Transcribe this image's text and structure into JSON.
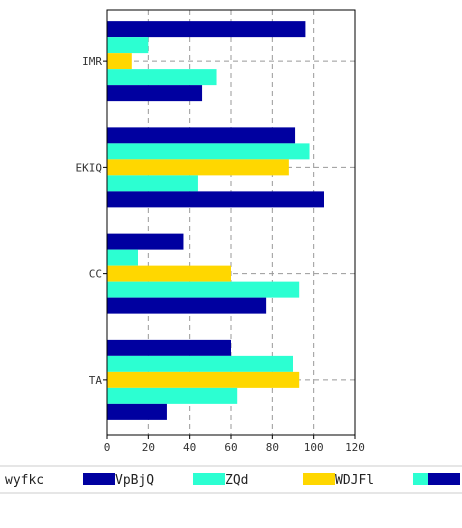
{
  "chart_data": {
    "type": "bar",
    "orientation": "horizontal",
    "categories": [
      "IMR",
      "EKIQ",
      "CC",
      "TA"
    ],
    "series": [
      {
        "name": "wyfkc",
        "color": "#0000A0",
        "values": [
          96,
          91,
          37,
          60
        ]
      },
      {
        "name": "VpBjQ",
        "color": "#2CFFD2",
        "values": [
          20,
          98,
          15,
          90
        ]
      },
      {
        "name": "ZQd",
        "color": "#FFD700",
        "values": [
          12,
          88,
          60,
          93
        ]
      },
      {
        "name": "WDJFl",
        "color": "#2CFFD2",
        "values": [
          53,
          44,
          93,
          63
        ]
      },
      {
        "name": "",
        "color": "#0000A0",
        "values": [
          46,
          105,
          77,
          29
        ]
      }
    ],
    "xlim": [
      0,
      120
    ],
    "xticks": [
      0,
      20,
      40,
      60,
      80,
      100,
      120
    ],
    "grid": true,
    "legend_position": "bottom"
  }
}
